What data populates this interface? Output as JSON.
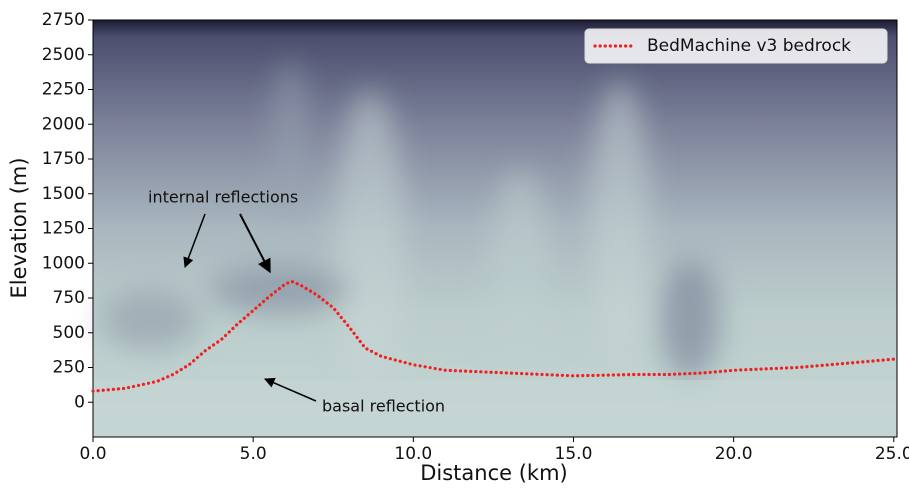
{
  "chart_data": {
    "type": "line",
    "xlabel": "Distance (km)",
    "ylabel": "Elevation (m)",
    "xlim": [
      0,
      25.1
    ],
    "ylim": [
      -250,
      2750
    ],
    "xticks": [
      {
        "value": 0,
        "label": "0.0"
      },
      {
        "value": 5,
        "label": "5.0"
      },
      {
        "value": 10,
        "label": "10.0"
      },
      {
        "value": 15,
        "label": "15.0"
      },
      {
        "value": 20,
        "label": "20.0"
      },
      {
        "value": 25,
        "label": "25.0"
      }
    ],
    "yticks": [
      0,
      250,
      500,
      750,
      1000,
      1250,
      1500,
      1750,
      2000,
      2250,
      2500,
      2750
    ],
    "legend_position": "upper right",
    "annotations": [
      "internal reflections",
      "basal reflection"
    ],
    "series": [
      {
        "name": "BedMachine v3 bedrock",
        "color": "#ee2222",
        "x": [
          0,
          1,
          2,
          2.5,
          3,
          3.5,
          4,
          4.5,
          5,
          5.5,
          6,
          6.2,
          6.5,
          7,
          7.5,
          8,
          8.5,
          9,
          10,
          11,
          12,
          13,
          14,
          15,
          16,
          17,
          18,
          19,
          20,
          21,
          22,
          23,
          24,
          25
        ],
        "values": [
          80,
          100,
          150,
          200,
          270,
          370,
          450,
          560,
          660,
          760,
          850,
          870,
          840,
          770,
          680,
          540,
          390,
          330,
          270,
          230,
          220,
          210,
          200,
          190,
          195,
          200,
          200,
          210,
          230,
          240,
          250,
          270,
          290,
          310
        ]
      }
    ]
  }
}
